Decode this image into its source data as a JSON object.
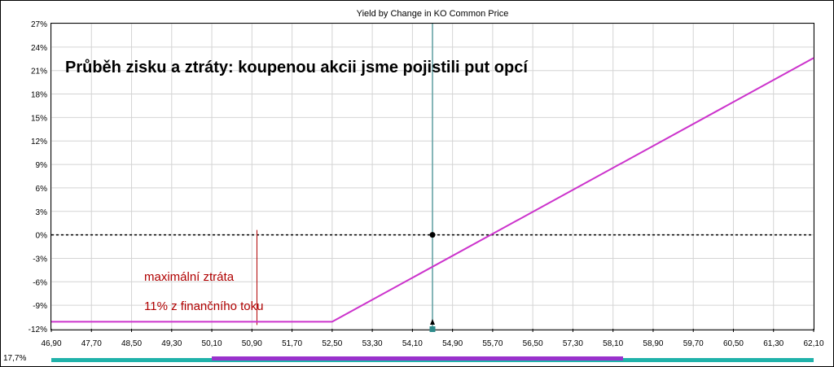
{
  "chart_data": {
    "type": "line",
    "title": "Yield by Change in KO Common Price",
    "annotation": "Průběh zisku a ztráty: koupenou akcii jsme pojistili put opcí",
    "loss_label": "maximální ztráta",
    "loss_value_label": "11% z finančního toku",
    "corner_label": "17,7%",
    "xlim": [
      46.9,
      62.1
    ],
    "ylim": [
      -12,
      27
    ],
    "x_ticks": [
      "46,90",
      "47,70",
      "48,50",
      "49,30",
      "50,10",
      "50,90",
      "51,70",
      "52,50",
      "53,30",
      "54,10",
      "54,90",
      "55,70",
      "56,50",
      "57,30",
      "58,10",
      "58,90",
      "59,70",
      "60,50",
      "61,30",
      "62,10"
    ],
    "x_tick_values": [
      46.9,
      47.7,
      48.5,
      49.3,
      50.1,
      50.9,
      51.7,
      52.5,
      53.3,
      54.1,
      54.9,
      55.7,
      56.5,
      57.3,
      58.1,
      58.9,
      59.7,
      60.5,
      61.3,
      62.1
    ],
    "y_ticks": [
      "27%",
      "24%",
      "21%",
      "18%",
      "15%",
      "12%",
      "9%",
      "6%",
      "3%",
      "0%",
      "-3%",
      "-6%",
      "-9%",
      "-12%"
    ],
    "y_tick_values": [
      27,
      24,
      21,
      18,
      15,
      12,
      9,
      6,
      3,
      0,
      -3,
      -6,
      -9,
      -12
    ],
    "series": [
      {
        "x": [
          46.9,
          52.5,
          62.1
        ],
        "y": [
          -11.1,
          -11.1,
          22.6
        ]
      }
    ],
    "current_price": 54.5,
    "current_yield": 0,
    "max_loss_x": 51.0,
    "zero_line": "dotted",
    "grid": true,
    "scrollbar": {
      "range": [
        50.1,
        58.3
      ]
    },
    "colors": {
      "series": "#cc33cc",
      "grid": "#d4d4d4",
      "current_line": "#5f9ea0",
      "annotation_red": "#b00000",
      "scroll_track": "#20b2aa",
      "scroll_thumb": "#9932cc"
    }
  }
}
